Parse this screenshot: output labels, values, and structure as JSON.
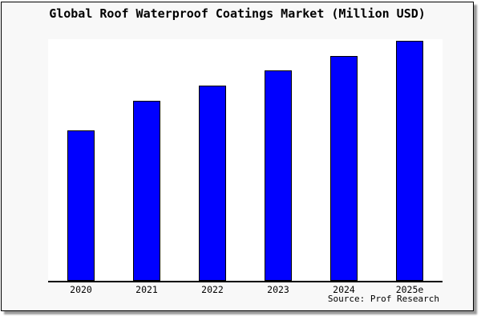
{
  "window": {
    "title": "Global Roof Waterproof Coatings Market (Million USD)"
  },
  "chart_data": {
    "type": "bar",
    "title": "Global Roof Waterproof Coatings Market (Million USD)",
    "categories": [
      "2020",
      "2021",
      "2022",
      "2023",
      "2024",
      "2025e"
    ],
    "values": [
      62.8,
      75.1,
      81.4,
      87.7,
      93.8,
      100
    ],
    "value_note": "No y-axis ticks shown; values estimated from bar heights, indexed so 2025e = 100",
    "xlabel": "",
    "ylabel": "",
    "ylim": [
      0,
      100
    ],
    "grid": false,
    "legend": null,
    "source_label": "Source: Prof Research"
  },
  "colors": {
    "bar_fill": "#0000ff",
    "bar_border": "#000000",
    "canvas_background": "#f8f8f8",
    "plot_background": "#ffffff",
    "axis_line": "#000000",
    "text": "#000000",
    "shadow": "#999999"
  }
}
